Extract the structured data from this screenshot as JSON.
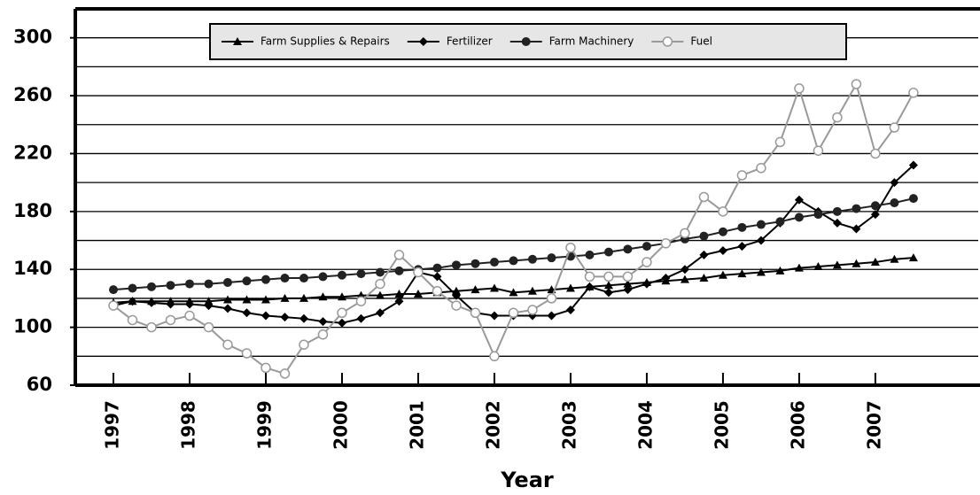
{
  "chart_data": {
    "type": "line",
    "x_label": "Year",
    "x": [
      1997,
      1997.25,
      1997.5,
      1997.75,
      1998,
      1998.25,
      1998.5,
      1998.75,
      1999,
      1999.25,
      1999.5,
      1999.75,
      2000,
      2000.25,
      2000.5,
      2000.75,
      2001,
      2001.25,
      2001.5,
      2001.75,
      2002,
      2002.25,
      2002.5,
      2002.75,
      2003,
      2003.25,
      2003.5,
      2003.75,
      2004,
      2004.25,
      2004.5,
      2004.75,
      2005,
      2005.25,
      2005.5,
      2005.75,
      2006,
      2006.25,
      2006.5,
      2006.75,
      2007,
      2007.25,
      2007.5
    ],
    "series": [
      {
        "name": "Farm Supplies & Repairs",
        "color": "#000000",
        "marker": "triangle",
        "values": [
          117,
          118,
          118,
          118,
          118,
          118,
          119,
          119,
          119,
          120,
          120,
          121,
          121,
          122,
          122,
          123,
          123,
          124,
          125,
          126,
          127,
          124,
          125,
          126,
          127,
          128,
          129,
          130,
          131,
          132,
          133,
          134,
          136,
          137,
          138,
          139,
          141,
          142,
          143,
          144,
          145,
          147,
          148
        ]
      },
      {
        "name": "Fertilizer",
        "color": "#000000",
        "marker": "diamond",
        "values": [
          115,
          118,
          117,
          116,
          116,
          115,
          113,
          110,
          108,
          107,
          106,
          104,
          103,
          106,
          110,
          118,
          138,
          135,
          122,
          110,
          108,
          108,
          108,
          108,
          112,
          128,
          124,
          126,
          130,
          134,
          140,
          150,
          153,
          156,
          160,
          172,
          188,
          180,
          172,
          168,
          178,
          200,
          212
        ]
      },
      {
        "name": "Farm Machinery",
        "color": "#222222",
        "marker": "circle",
        "values": [
          126,
          127,
          128,
          129,
          130,
          130,
          131,
          132,
          133,
          134,
          134,
          135,
          136,
          137,
          138,
          139,
          140,
          141,
          143,
          144,
          145,
          146,
          147,
          148,
          149,
          150,
          152,
          154,
          156,
          158,
          161,
          163,
          166,
          169,
          171,
          173,
          176,
          178,
          180,
          182,
          184,
          186,
          189
        ]
      },
      {
        "name": "Fuel",
        "color": "#999999",
        "marker": "open-circle",
        "values": [
          115,
          105,
          100,
          105,
          108,
          100,
          88,
          82,
          72,
          68,
          88,
          95,
          110,
          118,
          130,
          150,
          138,
          125,
          115,
          110,
          80,
          110,
          112,
          120,
          155,
          135,
          135,
          135,
          145,
          158,
          165,
          190,
          180,
          205,
          210,
          228,
          265,
          222,
          245,
          268,
          220,
          238,
          262
        ]
      }
    ],
    "xlim": [
      1996.5,
      2008.35
    ],
    "xticks": [
      1997,
      1998,
      1999,
      2000,
      2001,
      2002,
      2003,
      2004,
      2005,
      2006,
      2007
    ],
    "ylim": [
      60,
      320
    ],
    "yticks": [
      60,
      100,
      140,
      180,
      220,
      260,
      300
    ],
    "minor_yticks": [
      80,
      120,
      160,
      200,
      240,
      280,
      320
    ],
    "grid": true
  }
}
